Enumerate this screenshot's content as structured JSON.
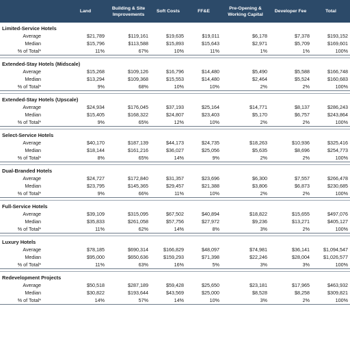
{
  "headers": [
    "",
    "Land",
    "Building & Site Improvements",
    "Soft Costs",
    "FF&E",
    "Pre-Opening & Working Capital",
    "Developer Fee",
    "Total"
  ],
  "row_labels": [
    "Average",
    "Median",
    "% of Total*"
  ],
  "categories": [
    {
      "name": "Limited-Service Hotels",
      "rows": [
        [
          "$21,789",
          "$119,161",
          "$19,635",
          "$19,011",
          "$6,178",
          "$7,378",
          "$193,152"
        ],
        [
          "$15,796",
          "$113,588",
          "$15,893",
          "$15,643",
          "$2,971",
          "$5,709",
          "$169,601"
        ],
        [
          "11%",
          "67%",
          "10%",
          "11%",
          "1%",
          "1%",
          "100%"
        ]
      ]
    },
    {
      "name": "Extended-Stay Hotels (Midscale)",
      "rows": [
        [
          "$15,268",
          "$109,126",
          "$16,796",
          "$14,480",
          "$5,490",
          "$5,588",
          "$166,748"
        ],
        [
          "$13,294",
          "$109,368",
          "$15,553",
          "$14,480",
          "$2,464",
          "$5,524",
          "$160,683"
        ],
        [
          "9%",
          "68%",
          "10%",
          "10%",
          "2%",
          "2%",
          "100%"
        ]
      ]
    },
    {
      "name": "Extended-Stay Hotels (Upscale)",
      "rows": [
        [
          "$24,934",
          "$176,045",
          "$37,193",
          "$25,164",
          "$14,771",
          "$8,137",
          "$286,243"
        ],
        [
          "$15,405",
          "$168,322",
          "$24,807",
          "$23,403",
          "$5,170",
          "$6,757",
          "$243,864"
        ],
        [
          "9%",
          "65%",
          "12%",
          "10%",
          "2%",
          "2%",
          "100%"
        ]
      ]
    },
    {
      "name": "Select-Service Hotels",
      "rows": [
        [
          "$40,170",
          "$187,139",
          "$44,173",
          "$24,735",
          "$18,263",
          "$10,936",
          "$325,416"
        ],
        [
          "$18,144",
          "$161,216",
          "$36,027",
          "$25,056",
          "$5,635",
          "$8,696",
          "$254,773"
        ],
        [
          "8%",
          "65%",
          "14%",
          "9%",
          "2%",
          "2%",
          "100%"
        ]
      ]
    },
    {
      "name": "Dual-Branded Hotels",
      "rows": [
        [
          "$24,727",
          "$172,840",
          "$31,357",
          "$23,696",
          "$6,300",
          "$7,557",
          "$266,478"
        ],
        [
          "$23,795",
          "$145,365",
          "$29,457",
          "$21,388",
          "$3,806",
          "$6,873",
          "$230,685"
        ],
        [
          "9%",
          "66%",
          "11%",
          "10%",
          "2%",
          "2%",
          "100%"
        ]
      ]
    },
    {
      "name": "Full-Service Hotels",
      "rows": [
        [
          "$39,109",
          "$315,095",
          "$67,502",
          "$40,894",
          "$18,822",
          "$15,655",
          "$497,076"
        ],
        [
          "$35,833",
          "$261,058",
          "$57,756",
          "$27,972",
          "$9,236",
          "$13,271",
          "$405,127"
        ],
        [
          "11%",
          "62%",
          "14%",
          "8%",
          "3%",
          "2%",
          "100%"
        ]
      ]
    },
    {
      "name": "Luxury Hotels",
      "rows": [
        [
          "$78,185",
          "$690,314",
          "$166,829",
          "$48,097",
          "$74,981",
          "$36,141",
          "$1,094,547"
        ],
        [
          "$95,000",
          "$650,636",
          "$159,293",
          "$71,398",
          "$22,246",
          "$28,004",
          "$1,026,577"
        ],
        [
          "11%",
          "63%",
          "16%",
          "5%",
          "3%",
          "3%",
          "100%"
        ]
      ]
    },
    {
      "name": "Redevelopment Projects",
      "rows": [
        [
          "$50,518",
          "$287,189",
          "$59,428",
          "$25,650",
          "$23,181",
          "$17,965",
          "$463,932"
        ],
        [
          "$30,822",
          "$193,644",
          "$43,569",
          "$25,000",
          "$8,528",
          "$8,258",
          "$309,821"
        ],
        [
          "14%",
          "57%",
          "14%",
          "10%",
          "3%",
          "2%",
          "100%"
        ]
      ]
    }
  ]
}
